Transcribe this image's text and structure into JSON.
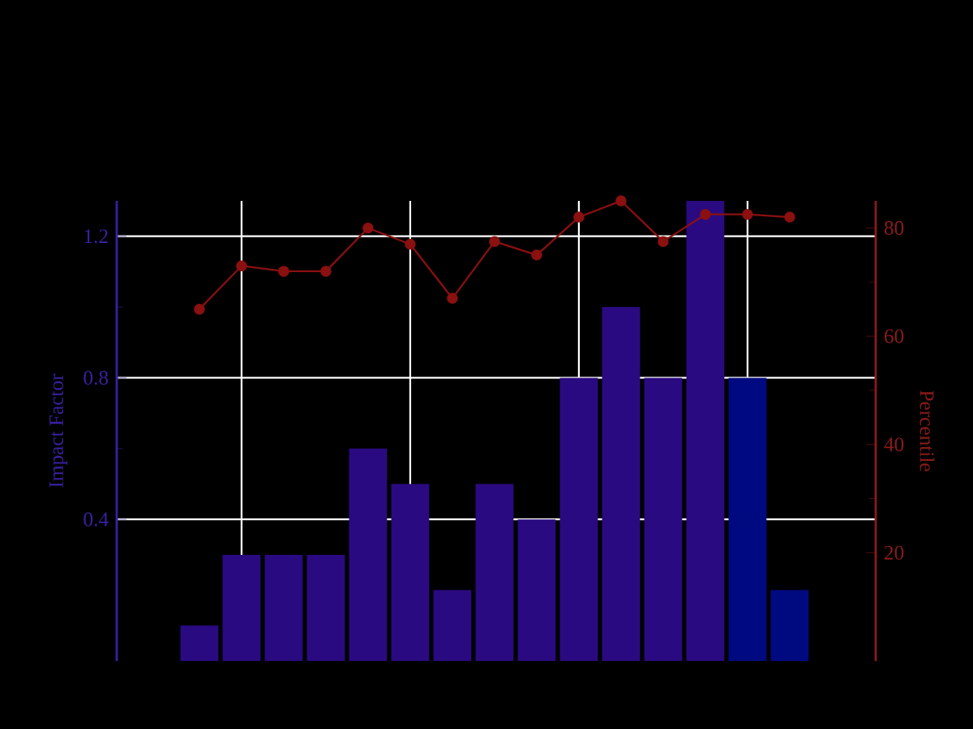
{
  "chart_data": {
    "type": "bar",
    "ylabel": "Impact Factor",
    "y2label": "Percentile",
    "categories": [
      null,
      null,
      null,
      null,
      null,
      null,
      null,
      null,
      null,
      null,
      null,
      null,
      null,
      null,
      null
    ],
    "ylim": [
      0,
      1.3
    ],
    "yticks": [
      0.4,
      0.8,
      1.2
    ],
    "y2lim": [
      0,
      85
    ],
    "y2ticks": [
      20,
      40,
      60,
      80
    ],
    "tick_labels": "y",
    "grid": true,
    "series": [
      {
        "colors": [
          "#2a0a80",
          "#2a0a80",
          "#2a0a80",
          "#2a0a80",
          "#2a0a80",
          "#2a0a80",
          "#2a0a80",
          "#2a0a80",
          "#2a0a80",
          "#2a0a80",
          "#2a0a80",
          "#2a0a80",
          "#2a0a80",
          "#000a80",
          "#000a80"
        ],
        "values": [
          0.1,
          0.3,
          0.3,
          0.3,
          0.6,
          0.5,
          0.2,
          0.5,
          0.4,
          0.8,
          1.0,
          0.8,
          1.3,
          0.8,
          0.2
        ]
      },
      {
        "type": "line",
        "axis": "y2",
        "color": "#8b1010",
        "marker": "circle",
        "values": [
          65,
          73,
          72,
          72,
          80,
          77,
          67,
          77.5,
          75,
          82,
          85,
          77.5,
          82.5,
          82.5,
          82
        ]
      }
    ]
  }
}
